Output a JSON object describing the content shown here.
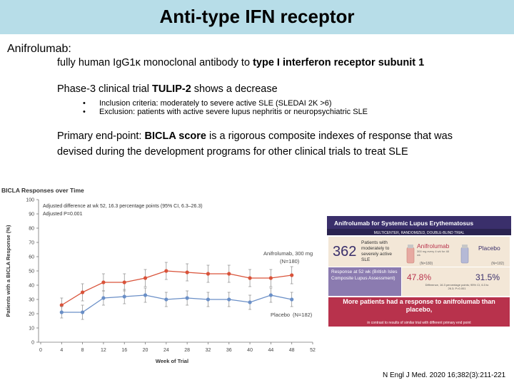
{
  "slide": {
    "title": "Anti-type IFN receptor",
    "drug_heading": "Anifrolumab:",
    "description_plain": "fully human IgG1κ monoclonal antibody to ",
    "description_bold": "type I interferon receptor subunit 1",
    "trial_plain_start": "Phase-3 clinical trial ",
    "trial_bold": "TULIP-2",
    "trial_plain_end": " shows a decrease",
    "bullets": [
      "Inclusion criteria: moderately to severe active SLE (SLEDAI 2K >6)",
      "Exclusion: patients with active severe lupus nephritis or neuropsychiatric SLE"
    ],
    "bullet_symbol": "•",
    "endpoint_line1_plain_start": "Primary end-point: ",
    "endpoint_line1_bold": "BICLA score",
    "endpoint_line1_plain_end": " is a rigorous composite indexes of response that was",
    "endpoint_line2": "devised during the development programs for other clinical trials to treat SLE",
    "citation": "N Engl J Med. 2020 16;382(3):211-221"
  },
  "chart_data": {
    "type": "line",
    "title": "BICLA Responses over Time",
    "annotation_1": "Adjusted difference at wk 52, 16.3 percentage points (95% CI, 6.3–26.3)",
    "annotation_2": "Adjusted P=0.001",
    "xlabel": "Week of Trial",
    "ylabel": "Patients with a BICLA Response (%)",
    "xlim": [
      0,
      52
    ],
    "ylim": [
      0,
      100
    ],
    "x_ticks": [
      0,
      4,
      8,
      12,
      16,
      20,
      24,
      28,
      32,
      36,
      40,
      44,
      48,
      52
    ],
    "y_ticks": [
      0,
      10,
      20,
      30,
      40,
      50,
      60,
      70,
      80,
      90,
      100
    ],
    "x": [
      4,
      8,
      12,
      16,
      20,
      24,
      28,
      32,
      36,
      40,
      44,
      48
    ],
    "series": [
      {
        "name": "Anifrolumab, 300 mg",
        "n_label": "(N=180)",
        "color": "#d9533a",
        "values": [
          26,
          35,
          42,
          42,
          45,
          50,
          49,
          48,
          48,
          45,
          45,
          47
        ],
        "err": [
          5,
          6,
          6,
          6,
          6,
          6,
          6,
          6,
          6,
          6,
          6,
          6
        ]
      },
      {
        "name": "Placebo",
        "n_label": "(N=182)",
        "color": "#6a8fc7",
        "values": [
          21,
          21,
          31,
          32,
          33,
          30,
          31,
          30,
          30,
          28,
          33,
          30
        ],
        "err": [
          4,
          5,
          5,
          5,
          5,
          5,
          5,
          5,
          5,
          5,
          5,
          5
        ]
      }
    ]
  },
  "infographic": {
    "title": "Anifrolumab for Systemic Lupus Erythematosus",
    "subtitle": "MULTICENTER, RANDOMIZED, DOUBLE-BLIND TRIAL",
    "patients_count": "362",
    "patients_text": "Patients with moderately to severely active SLE",
    "arm1_name": "Anifrolumab",
    "arm1_dose": "300 mg every 4 wk for 48 wk",
    "arm1_n": "(N=180)",
    "arm2_name": "Placebo",
    "arm2_n": "(N=182)",
    "response_label": "Response at 52 wk (British Isles Composite Lupus Assessment)",
    "arm1_pct": "47.8%",
    "arm2_pct": "31.5%",
    "difference_text": "Difference, 16.3 percentage points; 95% CI, 6.3 to 26.3; P=0.001",
    "conclusion": "More patients had a response to anifrolumab than placebo,",
    "conclusion_sub": "in contrast to results of similar trial with different primary end point",
    "colors": {
      "header": "#3a2f6b",
      "accent": "#b8324c",
      "panel": "#f3e7d7",
      "response_bg": "#8b7bb0"
    }
  }
}
